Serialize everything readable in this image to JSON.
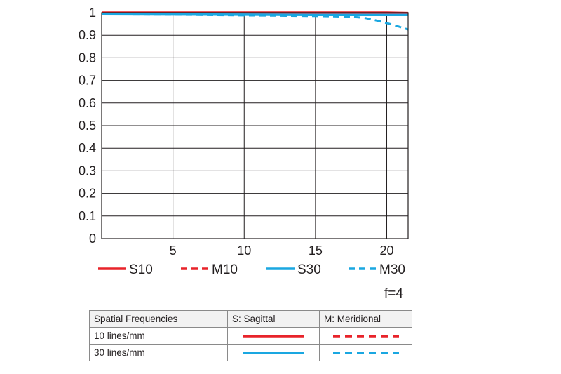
{
  "chart_data": {
    "type": "line",
    "title": "",
    "xlabel": "",
    "ylabel": "",
    "xlim": [
      0,
      21.5
    ],
    "ylim": [
      0,
      1
    ],
    "x_ticks": [
      5,
      10,
      15,
      20
    ],
    "y_ticks": [
      0,
      0.1,
      0.2,
      0.3,
      0.4,
      0.5,
      0.6,
      0.7,
      0.8,
      0.9,
      1
    ],
    "y_tick_labels": [
      "0",
      "0.1",
      "0.2",
      "0.3",
      "0.4",
      "0.5",
      "0.6",
      "0.7",
      "0.8",
      "0.9",
      "1"
    ],
    "grid": true,
    "legend_position": "bottom",
    "series": [
      {
        "name": "S10",
        "color": "#e8232a",
        "dash": false,
        "x": [
          0,
          5,
          10,
          15,
          20,
          21.5
        ],
        "y": [
          1.0,
          1.0,
          1.0,
          1.0,
          1.0,
          0.998
        ]
      },
      {
        "name": "M10",
        "color": "#e8232a",
        "dash": true,
        "x": [
          0,
          5,
          10,
          15,
          20,
          21.5
        ],
        "y": [
          1.0,
          1.0,
          1.0,
          1.0,
          0.998,
          0.995
        ]
      },
      {
        "name": "S30",
        "color": "#1aa7e1",
        "dash": false,
        "x": [
          0,
          5,
          10,
          15,
          20,
          21.5
        ],
        "y": [
          0.993,
          0.992,
          0.991,
          0.99,
          0.99,
          0.99
        ]
      },
      {
        "name": "M30",
        "color": "#1aa7e1",
        "dash": true,
        "x": [
          0,
          5,
          10,
          15,
          17.5,
          18.5,
          19.5,
          20.5,
          21.5
        ],
        "y": [
          0.993,
          0.991,
          0.988,
          0.985,
          0.982,
          0.976,
          0.962,
          0.945,
          0.925
        ]
      }
    ]
  },
  "note": "f=4",
  "table": {
    "headers": [
      "Spatial Frequencies",
      "S: Sagittal",
      "M: Meridional"
    ],
    "rows": [
      {
        "label": "10 lines/mm",
        "color": "#e8232a"
      },
      {
        "label": "30 lines/mm",
        "color": "#1aa7e1"
      }
    ]
  }
}
